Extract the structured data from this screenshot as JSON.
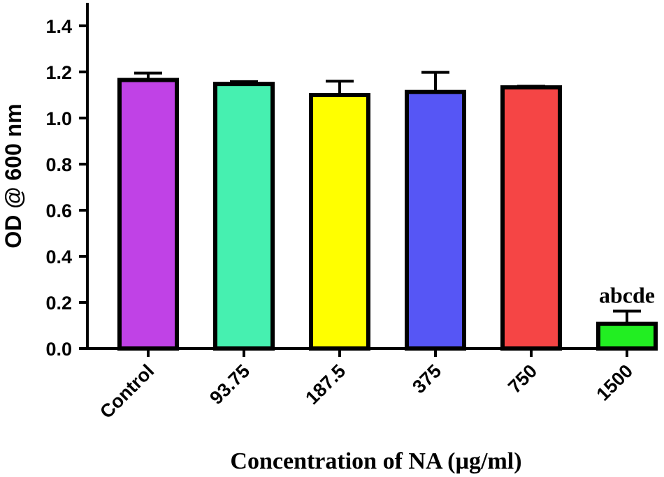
{
  "chart_data": {
    "type": "bar",
    "title": "",
    "xlabel": "Concentration of NA (µg/ml)",
    "ylabel": "OD @ 600 nm",
    "ylim": [
      0,
      1.5
    ],
    "yticks": [
      "0.0",
      "0.2",
      "0.4",
      "0.6",
      "0.8",
      "1.0",
      "1.2",
      "1.4"
    ],
    "categories": [
      "Control",
      "93.75",
      "187.5",
      "375",
      "750",
      "1500"
    ],
    "values": [
      1.165,
      1.148,
      1.1,
      1.113,
      1.133,
      0.107
    ],
    "errors": [
      0.03,
      0.01,
      0.06,
      0.085,
      0.005,
      0.055
    ],
    "colors": [
      "#c042e6",
      "#46f0b0",
      "#ffff00",
      "#5656f5",
      "#f54545",
      "#22ee22"
    ],
    "annotations": [
      {
        "category": "1500",
        "text": "abcde"
      }
    ],
    "grid": false
  }
}
